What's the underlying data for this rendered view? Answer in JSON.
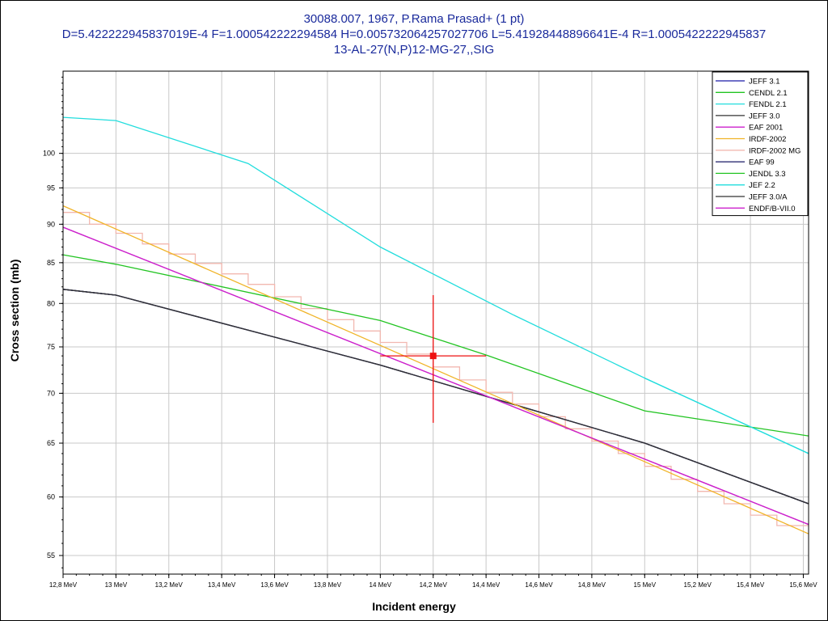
{
  "chart_data": {
    "type": "line",
    "title_lines": [
      "30088.007, 1967, P.Rama Prasad+ (1 pt)",
      "D=5.422222945837019E-4 F=1.000542222294584 H=0.005732064257027706 L=5.41928448896641E-4 R=1.0005422222945837",
      "13-AL-27(N,P)12-MG-27,,SIG"
    ],
    "xlabel": "Incident energy",
    "ylabel": "Cross section (mb)",
    "x_unit": "MeV",
    "xlim": [
      12.8,
      15.62
    ],
    "ylim": [
      53.5,
      113
    ],
    "y_scale": "log",
    "x_ticks": [
      12.8,
      13.0,
      13.2,
      13.4,
      13.6,
      13.8,
      14.0,
      14.2,
      14.4,
      14.6,
      14.8,
      15.0,
      15.2,
      15.4,
      15.6
    ],
    "x_tick_labels": [
      "12,8 MeV",
      "13 MeV",
      "13,2 MeV",
      "13,4 MeV",
      "13,6 MeV",
      "13,8 MeV",
      "14 MeV",
      "14,2 MeV",
      "14,4 MeV",
      "14,6 MeV",
      "14,8 MeV",
      "15 MeV",
      "15,2 MeV",
      "15,4 MeV",
      "15,6 MeV"
    ],
    "y_ticks": [
      55,
      60,
      65,
      70,
      75,
      80,
      85,
      90,
      95,
      100
    ],
    "grid": true,
    "legend_position": "top-right",
    "series": [
      {
        "name": "JEFF 3.1",
        "color": "#1a1aa8",
        "x": [
          12.8,
          13.0,
          14.0,
          15.0,
          15.62
        ],
        "y": [
          81.7,
          81.0,
          73.0,
          65.0,
          59.4
        ]
      },
      {
        "name": "CENDL 2.1",
        "color": "#22c422",
        "x": [
          12.8,
          13.0,
          14.0,
          14.4
        ],
        "y": [
          86.0,
          84.8,
          78.0,
          74.1
        ]
      },
      {
        "name": "FENDL 2.1",
        "color": "#22dddd",
        "x": [
          12.8,
          13.0,
          13.5,
          14.0,
          14.5,
          15.0,
          15.62
        ],
        "y": [
          105.5,
          105.0,
          98.5,
          87.0,
          78.7,
          71.6,
          64.0
        ]
      },
      {
        "name": "JEFF 3.0",
        "color": "#333333",
        "x": [
          12.8,
          13.0,
          14.0,
          15.0,
          15.62
        ],
        "y": [
          81.7,
          81.0,
          73.0,
          65.0,
          59.4
        ]
      },
      {
        "name": "EAF 2001",
        "color": "#cc22cc",
        "x": [
          12.8,
          15.62
        ],
        "y": [
          89.6,
          57.6
        ]
      },
      {
        "name": "IRDF-2002",
        "color": "#f0b428",
        "x": [
          12.8,
          15.62
        ],
        "y": [
          92.5,
          56.8
        ]
      },
      {
        "name": "IRDF-2002 MG",
        "color": "#f2b8b0",
        "step": true,
        "x": [
          12.8,
          12.9,
          13.0,
          13.1,
          13.2,
          13.3,
          13.4,
          13.5,
          13.6,
          13.7,
          13.8,
          13.9,
          14.0,
          14.1,
          14.2,
          14.3,
          14.4,
          14.5,
          14.6,
          14.7,
          14.8,
          14.9,
          15.0,
          15.1,
          15.2,
          15.3,
          15.4,
          15.5,
          15.62
        ],
        "y": [
          91.6,
          90.0,
          88.8,
          87.4,
          86.1,
          84.9,
          83.6,
          82.3,
          80.8,
          79.4,
          78.1,
          76.8,
          75.5,
          74.2,
          72.8,
          71.4,
          70.1,
          68.9,
          67.6,
          66.4,
          65.2,
          64.0,
          62.8,
          61.6,
          60.5,
          59.4,
          58.4,
          57.5,
          57.0
        ]
      },
      {
        "name": "EAF 99",
        "color": "#1a1a66",
        "x": [
          12.8,
          13.0,
          14.0,
          15.0,
          15.62
        ],
        "y": [
          81.7,
          81.0,
          73.0,
          65.0,
          59.4
        ]
      },
      {
        "name": "JENDL 3.3",
        "color": "#22c422",
        "x": [
          14.4,
          15.0,
          15.62
        ],
        "y": [
          74.1,
          68.2,
          65.7
        ]
      },
      {
        "name": "JEF 2.2",
        "color": "#22dddd",
        "x": [
          15.0,
          15.62
        ],
        "y": [
          71.6,
          64.0
        ]
      },
      {
        "name": "JEFF 3.0/A",
        "color": "#333333",
        "x": [
          12.8,
          13.0,
          14.0,
          15.0,
          15.62
        ],
        "y": [
          81.7,
          81.0,
          73.0,
          65.0,
          59.4
        ]
      },
      {
        "name": "ENDF/B-VII.0",
        "color": "#cc22cc",
        "x": [
          12.8,
          15.62
        ],
        "y": [
          89.6,
          57.6
        ]
      }
    ],
    "measurement": {
      "x": 14.2,
      "y": 74.0,
      "x_err": 0.2,
      "y_err": 7.0,
      "color": "#ee1111"
    }
  }
}
